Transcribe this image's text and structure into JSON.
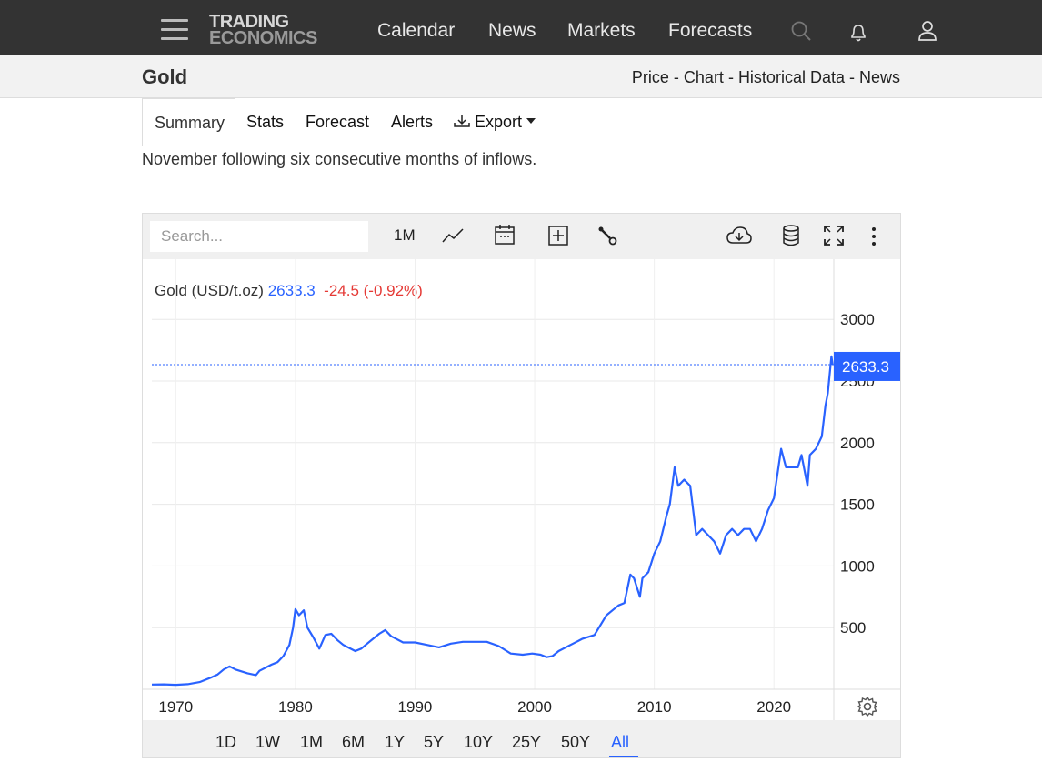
{
  "logo": {
    "line1": "TRADING",
    "line2": "ECONOMICS"
  },
  "nav": {
    "items": [
      "Calendar",
      "News",
      "Markets",
      "Forecasts"
    ]
  },
  "subheader": {
    "title": "Gold",
    "links": [
      "Price",
      "Chart",
      "Historical Data",
      "News"
    ],
    "separator": " - "
  },
  "tabs": {
    "items": [
      "Summary",
      "Stats",
      "Forecast",
      "Alerts",
      "Export"
    ],
    "active": "Summary"
  },
  "intro": {
    "text": "November following six consecutive months of inflows."
  },
  "chart_toolbar": {
    "search_placeholder": "Search...",
    "interval": "1M"
  },
  "legend": {
    "name": "Gold (USD/t.oz)",
    "price": "2633.3",
    "change": "-24.5 (-0.92%)"
  },
  "price_label": "2633.3",
  "ranges": {
    "items": [
      "1D",
      "1W",
      "1M",
      "6M",
      "1Y",
      "5Y",
      "10Y",
      "25Y",
      "50Y",
      "All"
    ],
    "active": "All"
  },
  "colors": {
    "line": "#2962ff",
    "negative": "#e53935",
    "nav_bg": "#333333"
  },
  "chart_data": {
    "type": "line",
    "series": [
      {
        "name": "Gold (USD/t.oz)",
        "x": [
          1968.0,
          1969.0,
          1970.0,
          1971.0,
          1972.0,
          1973.0,
          1973.5,
          1974.0,
          1974.5,
          1975.0,
          1976.0,
          1976.7,
          1977.0,
          1978.0,
          1978.5,
          1979.0,
          1979.5,
          1979.8,
          1980.0,
          1980.3,
          1980.7,
          1981.0,
          1981.5,
          1982.0,
          1982.5,
          1983.0,
          1983.5,
          1984.0,
          1985.0,
          1985.5,
          1986.0,
          1987.0,
          1987.5,
          1988.0,
          1989.0,
          1990.0,
          1991.0,
          1992.0,
          1993.0,
          1994.0,
          1995.0,
          1996.0,
          1997.0,
          1998.0,
          1999.0,
          1999.8,
          2000.5,
          2001.0,
          2001.5,
          2002.0,
          2003.0,
          2004.0,
          2005.0,
          2006.0,
          2006.5,
          2007.0,
          2007.5,
          2008.0,
          2008.3,
          2008.8,
          2009.0,
          2009.5,
          2010.0,
          2010.5,
          2011.0,
          2011.3,
          2011.7,
          2012.0,
          2012.5,
          2013.0,
          2013.5,
          2014.0,
          2014.5,
          2015.0,
          2015.5,
          2016.0,
          2016.5,
          2017.0,
          2017.5,
          2018.0,
          2018.5,
          2019.0,
          2019.5,
          2020.0,
          2020.6,
          2021.0,
          2021.5,
          2022.0,
          2022.3,
          2022.8,
          2023.0,
          2023.5,
          2024.0,
          2024.3,
          2024.5,
          2024.8,
          2024.9
        ],
        "y": [
          38,
          40,
          36,
          41,
          58,
          97,
          120,
          160,
          185,
          160,
          130,
          115,
          150,
          200,
          220,
          270,
          360,
          500,
          650,
          600,
          640,
          500,
          420,
          330,
          440,
          450,
          400,
          360,
          310,
          330,
          370,
          450,
          480,
          430,
          380,
          380,
          360,
          340,
          370,
          385,
          385,
          385,
          350,
          290,
          280,
          290,
          280,
          260,
          270,
          310,
          360,
          410,
          440,
          600,
          640,
          680,
          700,
          930,
          900,
          750,
          900,
          950,
          1100,
          1200,
          1400,
          1500,
          1800,
          1650,
          1700,
          1650,
          1250,
          1300,
          1250,
          1200,
          1100,
          1250,
          1300,
          1250,
          1300,
          1300,
          1200,
          1300,
          1450,
          1550,
          1950,
          1800,
          1800,
          1800,
          1900,
          1650,
          1900,
          1950,
          2050,
          2300,
          2400,
          2700,
          2633
        ]
      }
    ],
    "x_ticks": [
      "1970",
      "1980",
      "1990",
      "2000",
      "2010",
      "2020"
    ],
    "y_ticks": [
      "500",
      "1000",
      "1500",
      "2000",
      "2500",
      "3000"
    ],
    "xlim": [
      1968,
      2025
    ],
    "ylim": [
      0,
      3200
    ],
    "grid": true,
    "axis_position": "right"
  }
}
